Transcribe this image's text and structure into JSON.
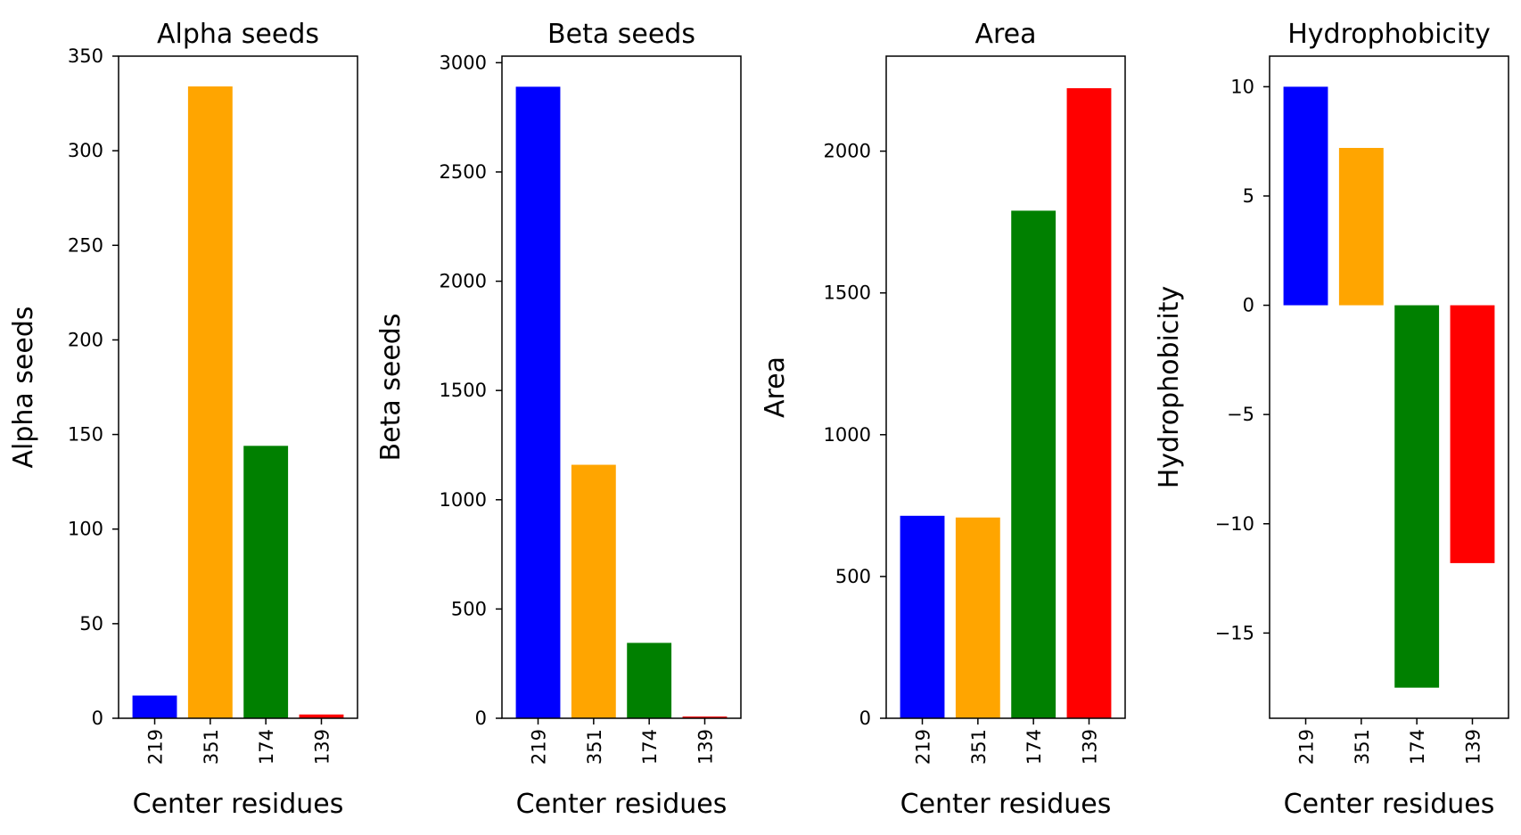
{
  "chart_data": [
    {
      "type": "bar",
      "title": "Alpha seeds",
      "xlabel": "Center residues",
      "ylabel": "Alpha seeds",
      "categories": [
        "219",
        "351",
        "174",
        "139"
      ],
      "values": [
        12,
        334,
        144,
        2
      ],
      "colors": [
        "#0000ff",
        "#ffa500",
        "#008000",
        "#ff0000"
      ],
      "ylim": [
        0,
        350
      ],
      "yticks": [
        0,
        50,
        100,
        150,
        200,
        250,
        300,
        350
      ],
      "ytick_labels": [
        "0",
        "50",
        "100",
        "150",
        "200",
        "250",
        "300",
        "350"
      ],
      "grid": false
    },
    {
      "type": "bar",
      "title": "Beta seeds",
      "xlabel": "Center residues",
      "ylabel": "Beta seeds",
      "categories": [
        "219",
        "351",
        "174",
        "139"
      ],
      "values": [
        2890,
        1160,
        345,
        8
      ],
      "colors": [
        "#0000ff",
        "#ffa500",
        "#008000",
        "#ff0000"
      ],
      "ylim": [
        0,
        3030
      ],
      "yticks": [
        0,
        500,
        1000,
        1500,
        2000,
        2500,
        3000
      ],
      "ytick_labels": [
        "0",
        "500",
        "1000",
        "1500",
        "2000",
        "2500",
        "3000"
      ],
      "grid": false
    },
    {
      "type": "bar",
      "title": "Area",
      "xlabel": "Center residues",
      "ylabel": "Area",
      "categories": [
        "219",
        "351",
        "174",
        "139"
      ],
      "values": [
        714,
        708,
        1790,
        2222
      ],
      "colors": [
        "#0000ff",
        "#ffa500",
        "#008000",
        "#ff0000"
      ],
      "ylim": [
        0,
        2335
      ],
      "yticks": [
        0,
        500,
        1000,
        1500,
        2000
      ],
      "ytick_labels": [
        "0",
        "500",
        "1000",
        "1500",
        "2000"
      ],
      "grid": false
    },
    {
      "type": "bar",
      "title": "Hydrophobicity",
      "xlabel": "Center residues",
      "ylabel": "Hydrophobicity",
      "categories": [
        "219",
        "351",
        "174",
        "139"
      ],
      "values": [
        10,
        7.2,
        -17.5,
        -11.8
      ],
      "colors": [
        "#0000ff",
        "#ffa500",
        "#008000",
        "#ff0000"
      ],
      "ylim": [
        -18.9,
        11.4
      ],
      "yticks": [
        -15,
        -10,
        -5,
        0,
        5,
        10
      ],
      "ytick_labels": [
        "−15",
        "−10",
        "−5",
        "0",
        "5",
        "10"
      ],
      "grid": false
    }
  ]
}
